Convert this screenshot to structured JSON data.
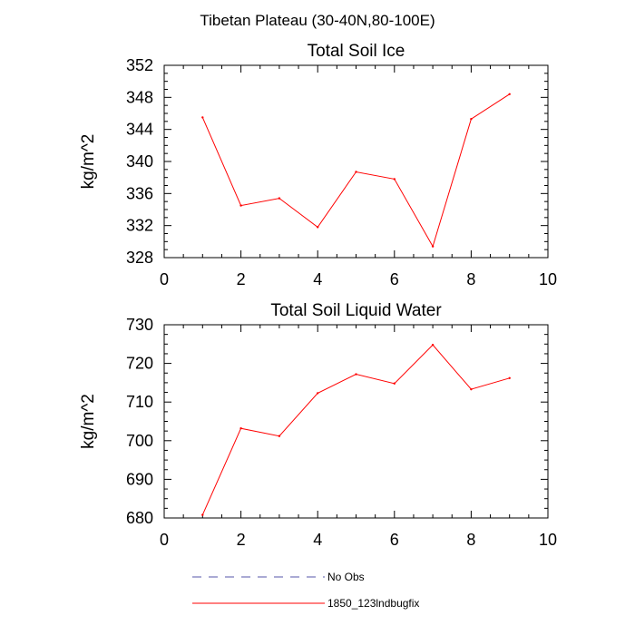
{
  "figure": {
    "title": "Tibetan Plateau (30-40N,80-100E)"
  },
  "chart_data": [
    {
      "type": "line",
      "title": "Total Soil Ice",
      "xlabel": "",
      "ylabel": "kg/m^2",
      "xlim": [
        0,
        10
      ],
      "ylim": [
        328,
        352
      ],
      "xticks": [
        0,
        2,
        4,
        6,
        8,
        10
      ],
      "yticks": [
        328,
        332,
        336,
        340,
        344,
        348,
        352
      ],
      "series": [
        {
          "name": "1850_123lndbugfix",
          "color": "#ff0000",
          "x": [
            1,
            2,
            3,
            4,
            5,
            6,
            7,
            8,
            9
          ],
          "y": [
            345.5,
            334.5,
            335.4,
            331.8,
            338.7,
            337.8,
            329.4,
            345.3,
            348.4
          ]
        }
      ]
    },
    {
      "type": "line",
      "title": "Total Soil Liquid Water",
      "xlabel": "",
      "ylabel": "kg/m^2",
      "xlim": [
        0,
        10
      ],
      "ylim": [
        680,
        730
      ],
      "xticks": [
        0,
        2,
        4,
        6,
        8,
        10
      ],
      "yticks": [
        680,
        690,
        700,
        710,
        720,
        730
      ],
      "series": [
        {
          "name": "1850_123lndbugfix",
          "color": "#ff0000",
          "x": [
            1,
            2,
            3,
            4,
            5,
            6,
            7,
            8,
            9
          ],
          "y": [
            680.8,
            703.2,
            701.2,
            712.3,
            717.2,
            714.8,
            724.8,
            713.3,
            716.2
          ]
        }
      ]
    }
  ],
  "legend": {
    "placement": "bottom-center",
    "items": [
      {
        "label": "No Obs",
        "color": "#5555aa",
        "style": "dashed"
      },
      {
        "label": "1850_123lndbugfix",
        "color": "#ff0000",
        "style": "solid"
      }
    ]
  }
}
